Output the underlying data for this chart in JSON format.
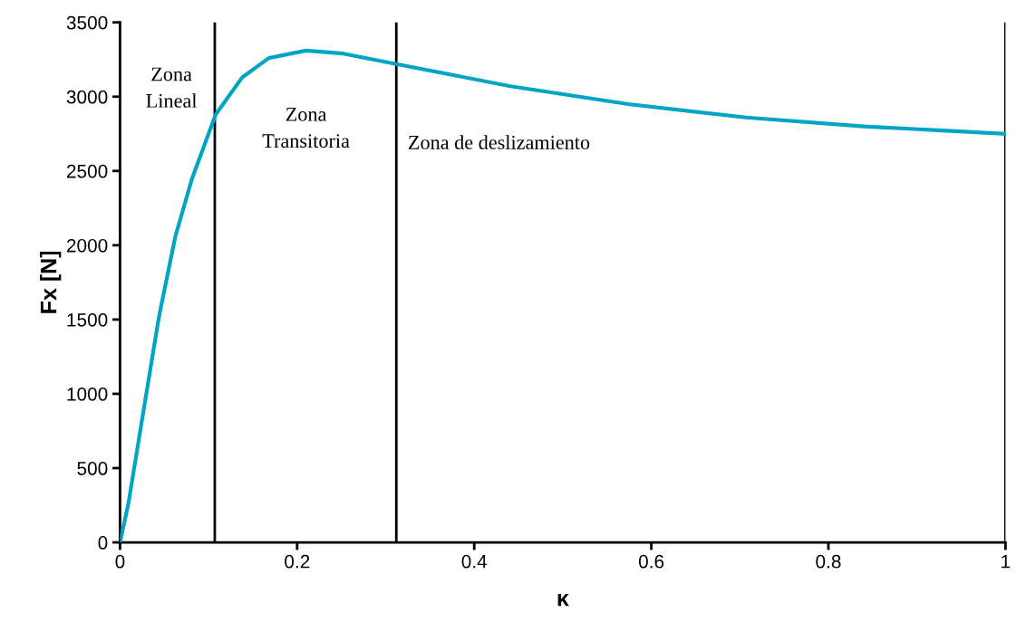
{
  "chart_data": {
    "type": "line",
    "xlabel": "κ",
    "ylabel": "Fx [N]",
    "x": [
      0,
      0.0097,
      0.0247,
      0.0437,
      0.0625,
      0.0814,
      0.108,
      0.138,
      0.168,
      0.21,
      0.252,
      0.312,
      0.441,
      0.574,
      0.707,
      0.84,
      1.0
    ],
    "series": [
      {
        "color": "#00a5c6",
        "values": [
          0,
          270,
          820,
          1510,
          2060,
          2450,
          2880,
          3130,
          3260,
          3310,
          3290,
          3220,
          3070,
          2950,
          2860,
          2800,
          2750
        ]
      }
    ],
    "xlim": [
      0,
      1
    ],
    "xticks": [
      0,
      0.2,
      0.4,
      0.6,
      0.8,
      1
    ],
    "ylim": [
      0,
      3500
    ],
    "yticks": [
      0,
      500,
      1000,
      1500,
      2000,
      2500,
      3000,
      3500
    ],
    "ref_lines": [
      {
        "axis": "x",
        "value": 0.107,
        "color": "#000000"
      },
      {
        "axis": "x",
        "value": 0.312,
        "color": "#000000"
      },
      {
        "axis": "x",
        "value": 1,
        "color": "#000000"
      }
    ],
    "annotations": [
      "Zona\nLineal",
      "Zona\nTransitoria",
      "Zona de deslizamiento"
    ],
    "grid": false,
    "legend": false,
    "marker": "none",
    "line_style": "solid"
  }
}
